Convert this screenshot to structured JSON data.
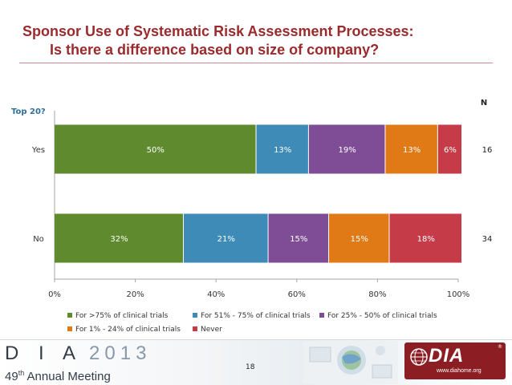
{
  "slide": {
    "title_line1": "Sponsor Use of Systematic Risk Assessment Processes:",
    "title_line2": "Is there a difference based on size of company?",
    "page_number": "18"
  },
  "footer": {
    "left_logo_letters": "D I A",
    "left_logo_year": "2013",
    "meeting_ordinal": "49",
    "meeting_ordinal_suffix": "th",
    "meeting_name": "Annual Meeting",
    "right_logo_mark": "DIA",
    "right_logo_url": "www.diahome.org",
    "right_logo_reg": "®"
  },
  "chart_data": {
    "type": "bar",
    "orientation": "horizontal",
    "stacked": true,
    "percent_stacked": true,
    "title": "",
    "ylabel": "Top 20?",
    "n_header": "N",
    "categories": [
      "Yes",
      "No"
    ],
    "n_values": [
      16,
      34
    ],
    "series": [
      {
        "name": "For >75% of clinical trials",
        "values": [
          50,
          32
        ],
        "labels": [
          "50%",
          "32%"
        ],
        "color": "#5f8a2e"
      },
      {
        "name": "For 51% - 75% of clinical trials",
        "values": [
          13,
          21
        ],
        "labels": [
          "13%",
          "21%"
        ],
        "color": "#3d8bb6"
      },
      {
        "name": "For 25% - 50% of clinical trials",
        "values": [
          19,
          15
        ],
        "labels": [
          "19%",
          "15%"
        ],
        "color": "#7e4d96"
      },
      {
        "name": "For 1% - 24% of clinical trials",
        "values": [
          13,
          15
        ],
        "labels": [
          "13%",
          "15%"
        ],
        "color": "#e07a16"
      },
      {
        "name": "Never",
        "values": [
          6,
          18
        ],
        "labels": [
          "6%",
          "18%"
        ],
        "color": "#c63b48"
      }
    ],
    "xlim": [
      0,
      100
    ],
    "x_ticks": [
      "0%",
      "20%",
      "40%",
      "60%",
      "80%",
      "100%"
    ],
    "grid": false,
    "legend_position": "bottom",
    "colors": {
      "title": "#9b2a2d",
      "axis_title": "#2f6f9a",
      "data_label": "#ffffff"
    }
  }
}
